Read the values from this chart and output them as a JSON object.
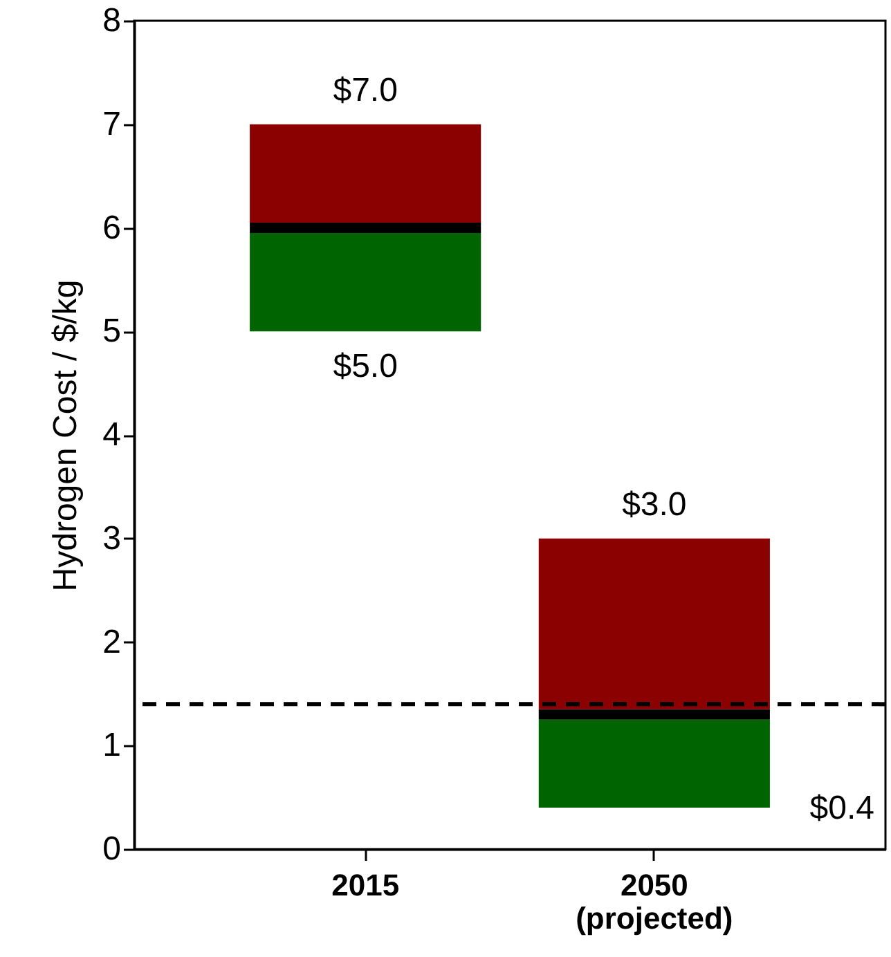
{
  "chart_data": {
    "type": "bar",
    "ylabel": "Hydrogen Cost / $/kg",
    "categories": [
      "2015",
      "2050\n(projected)"
    ],
    "series": [
      {
        "color": "#006400",
        "base": [
          5.0,
          0.4
        ],
        "values": [
          0.95,
          0.85
        ]
      },
      {
        "color": "#000000",
        "base": [
          5.95,
          1.25
        ],
        "values": [
          0.1,
          0.1
        ]
      },
      {
        "color": "#8b0000",
        "base": [
          6.05,
          1.35
        ],
        "values": [
          0.95,
          1.65
        ]
      }
    ],
    "ylim": [
      0,
      8
    ],
    "yticks": [
      0,
      1,
      2,
      3,
      4,
      5,
      6,
      7,
      8
    ],
    "grid": false,
    "ref_lines": [
      {
        "axis": "y",
        "value": 1.4,
        "line_style": "dashed",
        "color": "#000000"
      }
    ],
    "annotations": [
      {
        "text": "$7.0",
        "x": "2015",
        "y": 7.0
      },
      {
        "text": "$5.0",
        "x": "2015",
        "y": 5.0
      },
      {
        "text": "$3.0",
        "x": "2050\n(projected)",
        "y": 3.0
      },
      "$0.4"
    ]
  }
}
